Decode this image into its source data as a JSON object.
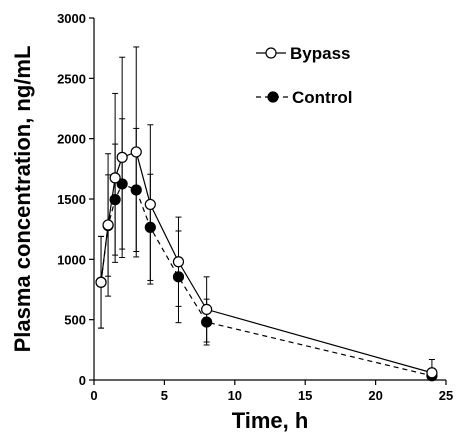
{
  "chart_data": {
    "type": "line",
    "xlabel": "Time, h",
    "ylabel": "Plasma concentration, ng/mL",
    "xlim": [
      0,
      25
    ],
    "ylim": [
      0,
      3000
    ],
    "xticks": [
      0,
      5,
      10,
      15,
      20,
      25
    ],
    "yticks": [
      0,
      500,
      1000,
      1500,
      2000,
      2500,
      3000
    ],
    "grid": false,
    "legend_position": "top-right",
    "series": [
      {
        "name": "Bypass",
        "marker": "open-circle",
        "line_style": "solid",
        "color": "#000000",
        "fill": "#ffffff",
        "points": [
          {
            "x": 0.5,
            "y": 810,
            "err": 380
          },
          {
            "x": 1.0,
            "y": 1285,
            "err": 590
          },
          {
            "x": 1.5,
            "y": 1675,
            "err": 700
          },
          {
            "x": 2.0,
            "y": 1845,
            "err": 830
          },
          {
            "x": 3.0,
            "y": 1890,
            "err": 870
          },
          {
            "x": 4.0,
            "y": 1455,
            "err": 660
          },
          {
            "x": 6.0,
            "y": 980,
            "err": 370
          },
          {
            "x": 8.0,
            "y": 585,
            "err": 270
          },
          {
            "x": 24.0,
            "y": 60,
            "err": 110
          }
        ]
      },
      {
        "name": "Control",
        "marker": "filled-circle",
        "line_style": "dashed",
        "color": "#000000",
        "fill": "#000000",
        "points": [
          {
            "x": 0.5,
            "y": 810,
            "err": 380
          },
          {
            "x": 1.0,
            "y": 1280,
            "err": 420
          },
          {
            "x": 1.5,
            "y": 1495,
            "err": 460
          },
          {
            "x": 2.0,
            "y": 1625,
            "err": 540
          },
          {
            "x": 3.0,
            "y": 1575,
            "err": 510
          },
          {
            "x": 4.0,
            "y": 1265,
            "err": 440
          },
          {
            "x": 6.0,
            "y": 855,
            "err": 380
          },
          {
            "x": 8.0,
            "y": 480,
            "err": 190
          },
          {
            "x": 24.0,
            "y": 35,
            "err": 40
          }
        ]
      }
    ]
  }
}
